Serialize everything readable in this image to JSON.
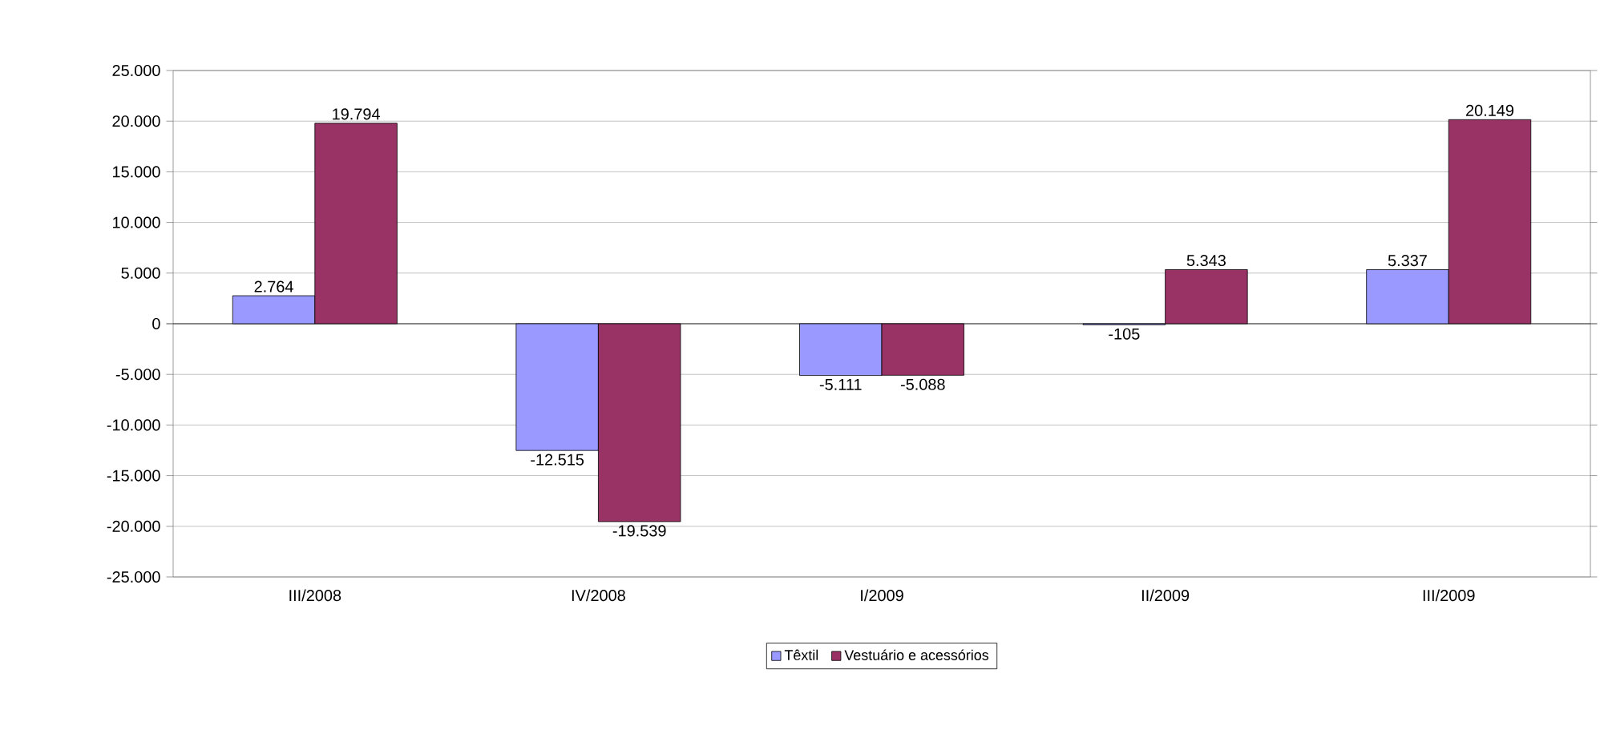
{
  "chart_data": {
    "type": "bar",
    "categories": [
      "III/2008",
      "IV/2008",
      "I/2009",
      "II/2009",
      "III/2009"
    ],
    "series": [
      {
        "name": "Têxtil",
        "color": "#9999ff",
        "values": [
          2764,
          -12515,
          -5111,
          -105,
          5337
        ],
        "value_labels": [
          "2.764",
          "-12.515",
          "-5.111",
          "-105",
          "5.337"
        ]
      },
      {
        "name": "Vestuário e acessórios",
        "color": "#993366",
        "values": [
          19794,
          -19539,
          -5088,
          5343,
          20149
        ],
        "value_labels": [
          "19.794",
          "-19.539",
          "-5.088",
          "5.343",
          "20.149"
        ]
      }
    ],
    "ylim": [
      -25000,
      25000
    ],
    "yticks": [
      {
        "value": -25000,
        "label": "-25.000"
      },
      {
        "value": -20000,
        "label": "-20.000"
      },
      {
        "value": -15000,
        "label": "-15.000"
      },
      {
        "value": -10000,
        "label": "-10.000"
      },
      {
        "value": -5000,
        "label": "-5.000"
      },
      {
        "value": 0,
        "label": "0"
      },
      {
        "value": 5000,
        "label": "5.000"
      },
      {
        "value": 10000,
        "label": "10.000"
      },
      {
        "value": 15000,
        "label": "15.000"
      },
      {
        "value": 20000,
        "label": "20.000"
      },
      {
        "value": 25000,
        "label": "25.000"
      }
    ],
    "grid": "y",
    "legend": "bottom"
  }
}
